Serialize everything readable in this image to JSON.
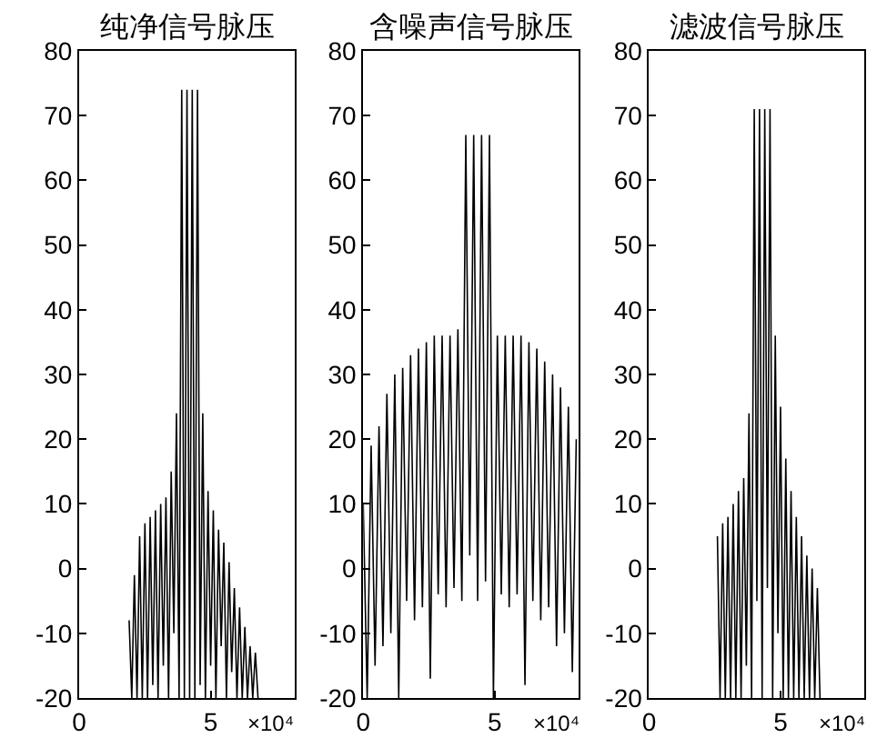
{
  "chart_data": [
    {
      "type": "line",
      "title": "纯净信号脉压",
      "annotations": [
        "×10⁴"
      ],
      "x": [
        1.9,
        2.0,
        2.1,
        2.2,
        2.3,
        2.4,
        2.5,
        2.6,
        2.7,
        2.8,
        2.9,
        3.0,
        3.1,
        3.2,
        3.3,
        3.4,
        3.5,
        3.6,
        3.7,
        3.8,
        3.9,
        4.0,
        4.1,
        4.2,
        4.3,
        4.4,
        4.5,
        4.6,
        4.7,
        4.8,
        4.9,
        5.0,
        5.1,
        5.2,
        5.3,
        5.4,
        5.5,
        5.6,
        5.7,
        5.8,
        5.9,
        6.0,
        6.1,
        6.2,
        6.3,
        6.4,
        6.5,
        6.6,
        6.7,
        6.8
      ],
      "series": [
        {
          "color": "#000000",
          "values": [
            -8,
            -20,
            -1,
            -20,
            5,
            -20,
            7,
            -20,
            8,
            -18,
            9,
            -20,
            10,
            -15,
            11,
            -20,
            15,
            -10,
            24,
            -20,
            74,
            -20,
            74,
            -20,
            74,
            -20,
            74,
            -18,
            24,
            -20,
            12,
            -15,
            9,
            -20,
            6,
            -12,
            4,
            -20,
            1,
            -16,
            -3,
            -20,
            -6,
            -20,
            -9,
            -20,
            -12,
            -20,
            -13,
            -20
          ]
        }
      ],
      "xlim": [
        0,
        8.2
      ],
      "xticks": [
        0,
        5
      ],
      "ylim": [
        -20,
        80
      ],
      "yticks": [
        -20,
        -10,
        0,
        10,
        20,
        30,
        40,
        50,
        60,
        70,
        80
      ]
    },
    {
      "type": "line",
      "title": "含噪声信号脉压",
      "annotations": [
        "×10⁴"
      ],
      "x": [
        0,
        0.15,
        0.3,
        0.45,
        0.6,
        0.75,
        0.9,
        1.05,
        1.2,
        1.35,
        1.5,
        1.65,
        1.8,
        1.95,
        2.1,
        2.25,
        2.4,
        2.55,
        2.7,
        2.85,
        3.0,
        3.15,
        3.3,
        3.45,
        3.6,
        3.75,
        3.9,
        4.05,
        4.2,
        4.35,
        4.5,
        4.65,
        4.8,
        4.95,
        5.1,
        5.25,
        5.4,
        5.55,
        5.7,
        5.85,
        6.0,
        6.15,
        6.3,
        6.45,
        6.6,
        6.75,
        6.9,
        7.05,
        7.2,
        7.35,
        7.5,
        7.65,
        7.8,
        7.95,
        8.1
      ],
      "series": [
        {
          "color": "#000000",
          "values": [
            10,
            -20,
            19,
            -15,
            22,
            -12,
            27,
            -10,
            30,
            -20,
            31,
            -5,
            33,
            -8,
            34,
            -6,
            35,
            -17,
            36,
            -4,
            36,
            -6,
            36,
            -3,
            37,
            -5,
            67,
            2,
            67,
            -5,
            67,
            -2,
            67,
            -20,
            36,
            -4,
            36,
            -6,
            36,
            -4,
            36,
            -18,
            35,
            -5,
            34,
            -8,
            32,
            -6,
            30,
            -12,
            28,
            -10,
            25,
            -16,
            20
          ]
        }
      ],
      "xlim": [
        0,
        8.2
      ],
      "xticks": [
        0,
        5
      ],
      "ylim": [
        -20,
        80
      ],
      "yticks": [
        -20,
        -10,
        0,
        10,
        20,
        30,
        40,
        50,
        60,
        70,
        80
      ]
    },
    {
      "type": "line",
      "title": "滤波信号脉压",
      "annotations": [
        "×10⁴"
      ],
      "x": [
        2.6,
        2.7,
        2.8,
        2.9,
        3.0,
        3.1,
        3.2,
        3.3,
        3.4,
        3.5,
        3.6,
        3.7,
        3.8,
        3.9,
        4.0,
        4.1,
        4.2,
        4.3,
        4.4,
        4.5,
        4.6,
        4.7,
        4.8,
        4.9,
        5.0,
        5.1,
        5.2,
        5.3,
        5.4,
        5.5,
        5.6,
        5.7,
        5.8,
        5.9,
        6.0,
        6.1,
        6.2,
        6.3,
        6.4,
        6.5
      ],
      "series": [
        {
          "color": "#000000",
          "values": [
            5,
            -20,
            7,
            -20,
            8,
            -20,
            10,
            -20,
            12,
            -20,
            14,
            -15,
            24,
            -20,
            71,
            -5,
            71,
            -20,
            71,
            -3,
            71,
            -20,
            36,
            -10,
            25,
            -20,
            17,
            -20,
            12,
            -20,
            8,
            -20,
            5,
            -20,
            2,
            -20,
            0,
            -20,
            -3,
            -20
          ]
        }
      ],
      "xlim": [
        0,
        8.2
      ],
      "xticks": [
        0,
        5
      ],
      "ylim": [
        -20,
        80
      ],
      "yticks": [
        -20,
        -10,
        0,
        10,
        20,
        30,
        40,
        50,
        60,
        70,
        80
      ]
    }
  ]
}
